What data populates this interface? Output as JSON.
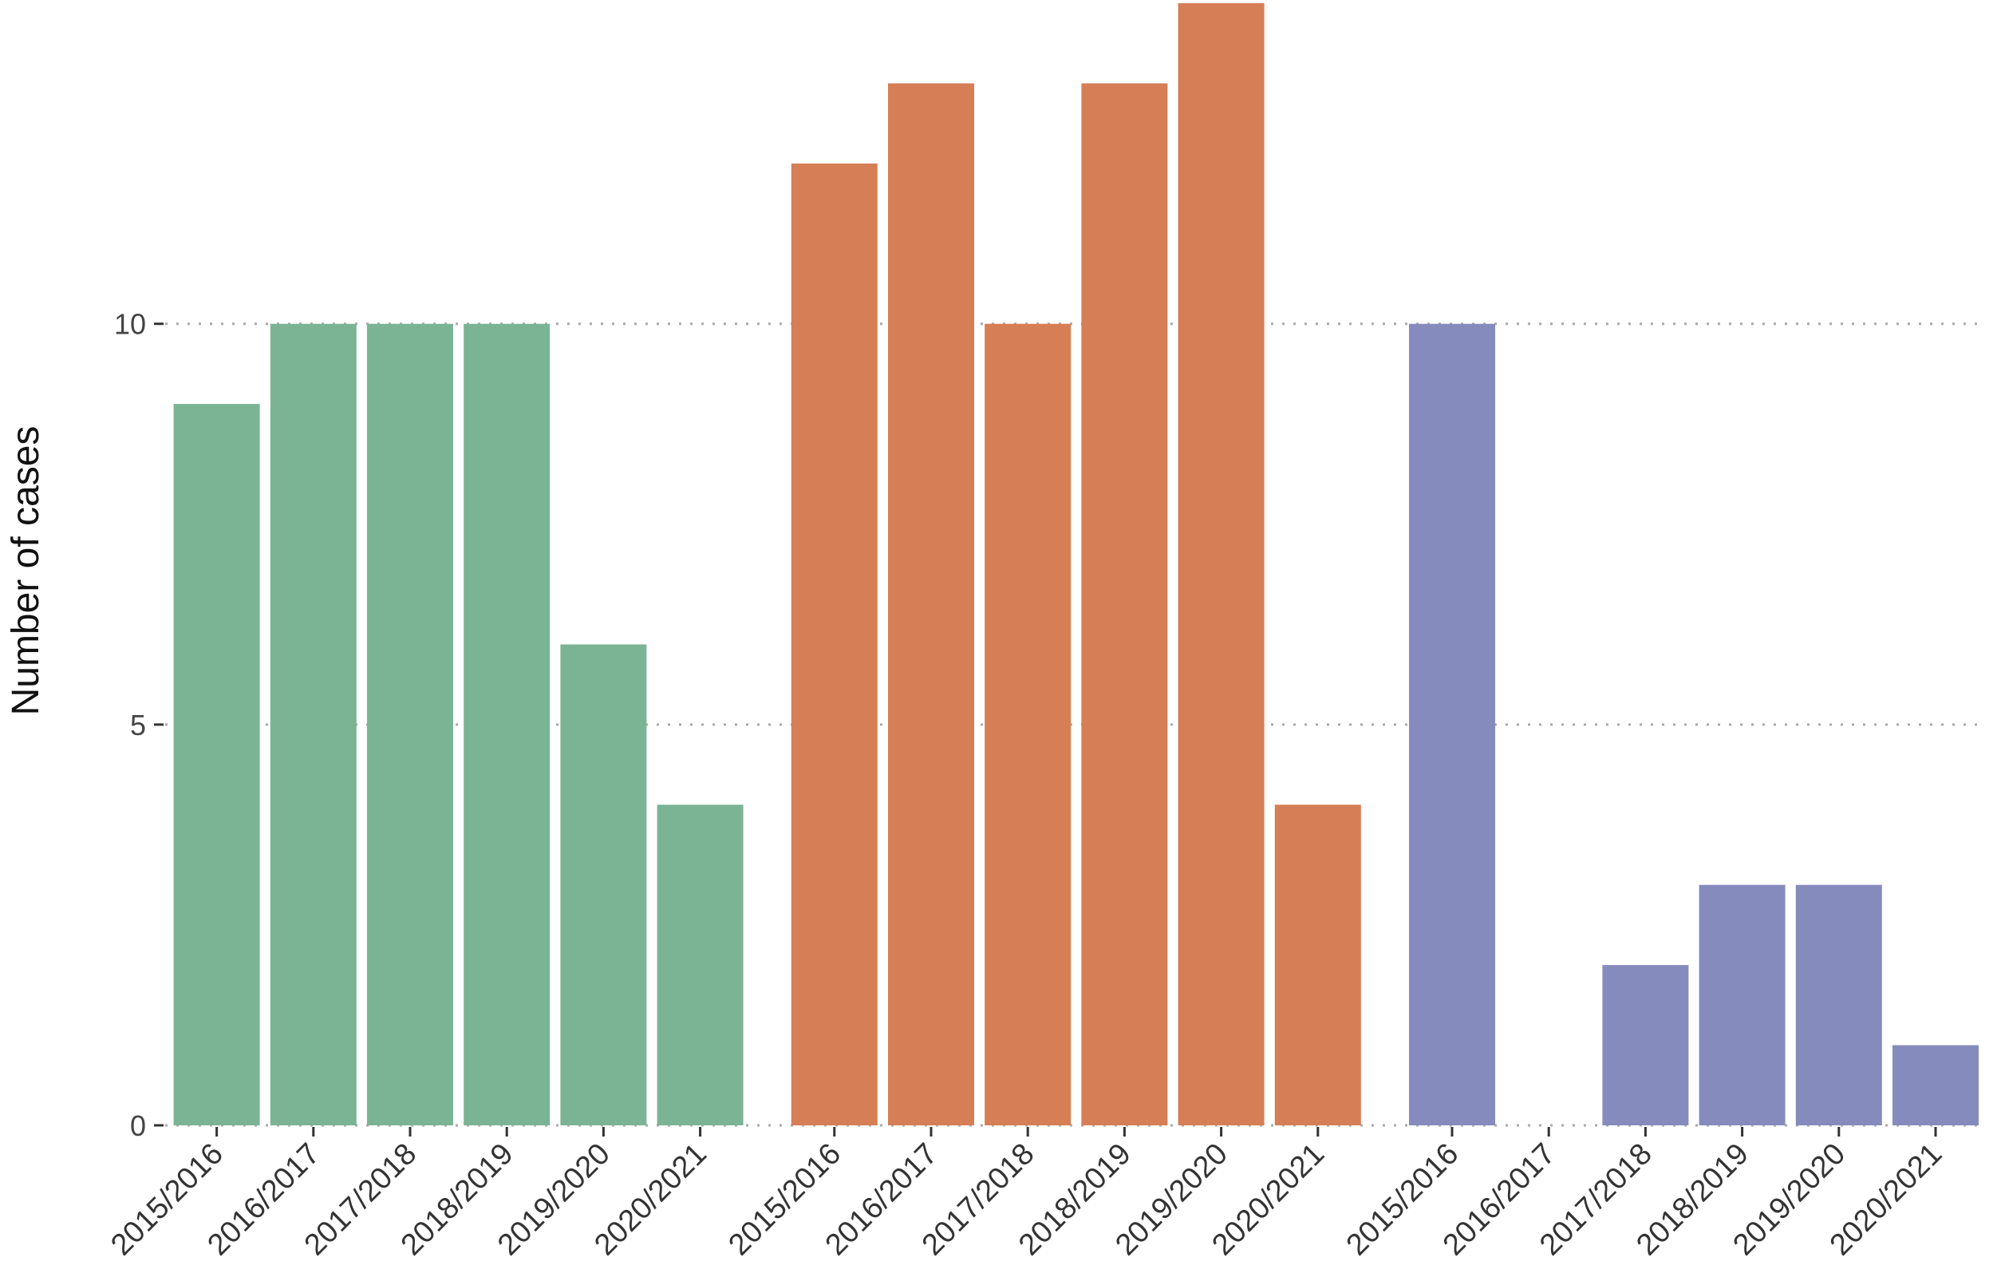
{
  "chart_data": {
    "type": "bar",
    "title": "",
    "xlabel": "",
    "ylabel": "Number of cases",
    "ylim": [
      0,
      14
    ],
    "yticks": [
      0,
      5,
      10
    ],
    "grid": "horizontal dotted",
    "legend": "none",
    "groups": [
      {
        "color": "#7bb494",
        "categories": [
          "2015/2016",
          "2016/2017",
          "2017/2018",
          "2018/2019",
          "2019/2020",
          "2020/2021"
        ],
        "values": [
          9,
          10,
          10,
          10,
          6,
          4
        ]
      },
      {
        "color": "#d67e55",
        "categories": [
          "2015/2016",
          "2016/2017",
          "2017/2018",
          "2018/2019",
          "2019/2020",
          "2020/2021"
        ],
        "values": [
          12,
          13,
          10,
          13,
          14,
          4
        ]
      },
      {
        "color": "#858cbd",
        "categories": [
          "2015/2016",
          "2016/2017",
          "2017/2018",
          "2018/2019",
          "2019/2020",
          "2020/2021"
        ],
        "values": [
          10,
          0,
          2,
          3,
          3,
          1
        ]
      }
    ]
  }
}
